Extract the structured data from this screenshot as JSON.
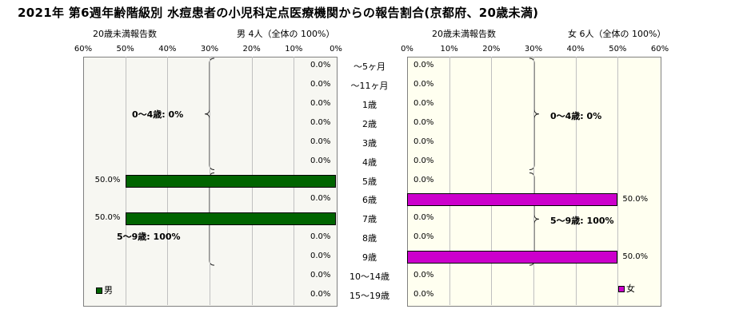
{
  "title": "2021年 第6週年齢階級別 水痘患者の小児科定点医療機関からの報告割合(京都府、20歳未満)",
  "colors": {
    "male": "#006400",
    "female": "#CC00CC",
    "male_plot_bg": "#F7F7F2",
    "female_plot_bg": "#FFFFF0"
  },
  "categories": [
    "～5ヶ月",
    "～11ヶ月",
    "1歳",
    "2歳",
    "3歳",
    "4歳",
    "5歳",
    "6歳",
    "7歳",
    "8歳",
    "9歳",
    "10～14歳",
    "15～19歳"
  ],
  "chart_data": [
    {
      "type": "bar",
      "orientation": "horizontal",
      "direction": "right-to-left",
      "subtitle_left": "20歳未満報告数",
      "subtitle_right": "男 4人（全体の 100%）",
      "axis_ticks": [
        "60%",
        "50%",
        "40%",
        "30%",
        "20%",
        "10%",
        "0%"
      ],
      "xlim": [
        0,
        60
      ],
      "grid": true,
      "legend": "男",
      "legend_position": "bottom-left",
      "value_labels": [
        "0.0%",
        "0.0%",
        "0.0%",
        "0.0%",
        "0.0%",
        "0.0%",
        "50.0%",
        "0.0%",
        "50.0%",
        "0.0%",
        "0.0%",
        "0.0%",
        "0.0%"
      ],
      "values": [
        0,
        0,
        0,
        0,
        0,
        0,
        50,
        0,
        50,
        0,
        0,
        0,
        0
      ],
      "annotations": [
        {
          "text": "0～4歳: 0%",
          "from": "～5ヶ月",
          "to": "4歳"
        },
        {
          "text": "5～9歳: 100%",
          "from": "5歳",
          "to": "9歳"
        }
      ]
    },
    {
      "type": "bar",
      "orientation": "horizontal",
      "direction": "left-to-right",
      "subtitle_left": "20歳未満報告数",
      "subtitle_right": "女 6人（全体の 100%）",
      "axis_ticks": [
        "0%",
        "10%",
        "20%",
        "30%",
        "40%",
        "50%",
        "60%"
      ],
      "xlim": [
        0,
        60
      ],
      "grid": true,
      "legend": "女",
      "legend_position": "bottom-right",
      "value_labels": [
        "0.0%",
        "0.0%",
        "0.0%",
        "0.0%",
        "0.0%",
        "0.0%",
        "0.0%",
        "50.0%",
        "0.0%",
        "0.0%",
        "50.0%",
        "0.0%",
        "0.0%"
      ],
      "values": [
        0,
        0,
        0,
        0,
        0,
        0,
        0,
        50,
        0,
        0,
        50,
        0,
        0
      ],
      "annotations": [
        {
          "text": "0～4歳: 0%",
          "from": "～5ヶ月",
          "to": "4歳"
        },
        {
          "text": "5～9歳: 100%",
          "from": "5歳",
          "to": "9歳"
        }
      ]
    }
  ]
}
